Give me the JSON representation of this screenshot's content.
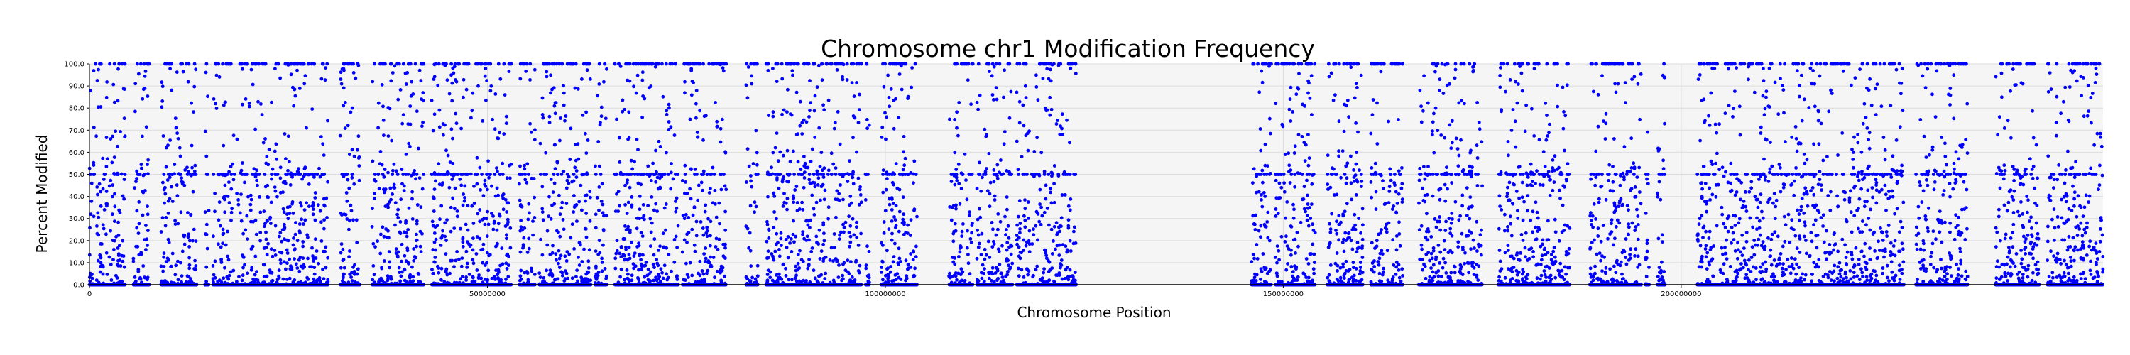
{
  "chart_data": {
    "type": "scatter",
    "title": "Chromosome chr1 Modification Frequency",
    "xlabel": "Chromosome Position",
    "ylabel": "Percent Modified",
    "xlim": [
      0,
      253000000
    ],
    "ylim": [
      0,
      100
    ],
    "x_ticks": [
      0,
      50000000,
      100000000,
      150000000,
      200000000
    ],
    "x_tick_labels": [
      "0",
      "50000000",
      "100000000",
      "150000000",
      "200000000"
    ],
    "y_ticks": [
      0,
      10,
      20,
      30,
      40,
      50,
      60,
      70,
      80,
      90,
      100
    ],
    "y_tick_labels": [
      "0.0",
      "10.0",
      "20.0",
      "30.0",
      "40.0",
      "50.0",
      "60.0",
      "70.0",
      "80.0",
      "90.0",
      "100.0"
    ],
    "grid": true,
    "marker_color": "#0000ff",
    "plot_background": "#f5f5f5",
    "data_ranges": [
      [
        0,
        4500000
      ],
      [
        5500000,
        7500000
      ],
      [
        9000000,
        13500000
      ],
      [
        14500000,
        15000000
      ],
      [
        15500000,
        30000000
      ],
      [
        31500000,
        34000000
      ],
      [
        35500000,
        42000000
      ],
      [
        43000000,
        53000000
      ],
      [
        54000000,
        56000000
      ],
      [
        56500000,
        63000000
      ],
      [
        63500000,
        65000000
      ],
      [
        66000000,
        74000000
      ],
      [
        74500000,
        80000000
      ],
      [
        82500000,
        84000000
      ],
      [
        85000000,
        97000000
      ],
      [
        97500000,
        98000000
      ],
      [
        99500000,
        104000000
      ],
      [
        108000000,
        111000000
      ],
      [
        111500000,
        116000000
      ],
      [
        116500000,
        124000000
      ],
      [
        146000000,
        148500000
      ],
      [
        149000000,
        154000000
      ],
      [
        155500000,
        160000000
      ],
      [
        161000000,
        165000000
      ],
      [
        167000000,
        175000000
      ],
      [
        177000000,
        186000000
      ],
      [
        188500000,
        195000000
      ],
      [
        195500000,
        196000000
      ],
      [
        197000000,
        198000000
      ],
      [
        202000000,
        228000000
      ],
      [
        229500000,
        236000000
      ],
      [
        239500000,
        245000000
      ],
      [
        246000000,
        253000000
      ]
    ],
    "dense_levels": [
      0,
      50,
      100
    ]
  }
}
